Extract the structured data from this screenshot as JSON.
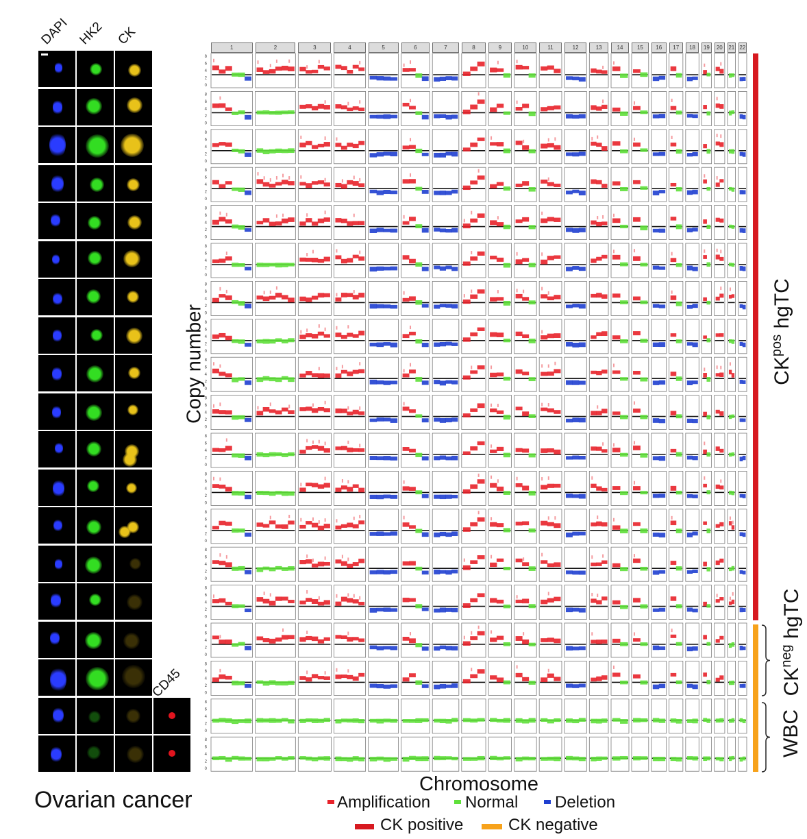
{
  "figure": {
    "panel_title": "Ovarian cancer",
    "microscopy_columns": [
      "DAPI",
      "HK2",
      "CK"
    ],
    "extra_column": "CD45",
    "y_axis_label": "Copy number",
    "x_axis_label": "Chromosome",
    "y_ticks": [
      "8",
      "6",
      "4",
      "2",
      "0"
    ],
    "chromosomes": [
      "1",
      "2",
      "3",
      "4",
      "5",
      "6",
      "7",
      "8",
      "9",
      "10",
      "11",
      "12",
      "13",
      "14",
      "15",
      "16",
      "17",
      "18",
      "19",
      "20",
      "21",
      "22"
    ],
    "group_labels": {
      "ck_pos": {
        "prefix": "CK",
        "sup": "pos",
        "suffix": " hgTC"
      },
      "ck_neg": {
        "prefix": "CK",
        "sup": "neg",
        "suffix": " hgTC"
      },
      "wbc": "WBC"
    },
    "legend": {
      "amplification": "Amplification",
      "normal": "Normal",
      "deletion": "Deletion",
      "ck_positive": "CK positive",
      "ck_negative": "CK negative"
    },
    "colors": {
      "amplification": "#e8222a",
      "normal": "#5fe03a",
      "deletion": "#1f3fd0",
      "ck_positive": "#d71920",
      "ck_negative": "#f7a21b",
      "dapi": "#2a3cff",
      "hk2": "#33dd22",
      "ck": "#e8c21a",
      "cd45": "#e0141e"
    },
    "cell_counts": {
      "ck_positive": 15,
      "ck_negative": 2,
      "wbc": 2
    }
  }
}
